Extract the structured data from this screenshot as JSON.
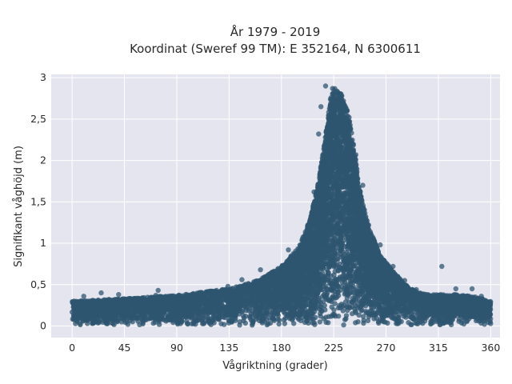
{
  "chart_data": {
    "type": "scatter",
    "title": "År 1979 - 2019",
    "subtitle": "Koordinat (Sweref 99 TM): E 352164, N 6300611",
    "xlabel": "Vågriktning (grader)",
    "ylabel": "Signifikant våghöjd (m)",
    "xlim": [
      -18,
      368
    ],
    "ylim": [
      -0.14,
      3.04
    ],
    "x_ticks": [
      0,
      45,
      90,
      135,
      180,
      225,
      270,
      315,
      360
    ],
    "x_tick_labels": [
      "0",
      "45",
      "90",
      "135",
      "180",
      "225",
      "270",
      "315",
      "360"
    ],
    "y_ticks": [
      0,
      0.5,
      1,
      1.5,
      2,
      2.5,
      3
    ],
    "y_tick_labels": [
      "0",
      "0,5",
      "1",
      "1,5",
      "2",
      "2,5",
      "3"
    ],
    "grid": true,
    "point_color": "#2f5670",
    "background_color": "#e5e5ef",
    "envelope_upper": {
      "x": [
        0,
        45,
        90,
        135,
        160,
        180,
        195,
        205,
        212,
        218,
        222,
        226,
        232,
        238,
        243,
        248,
        255,
        265,
        275,
        285,
        295,
        305,
        315,
        330,
        345,
        360
      ],
      "y": [
        0.3,
        0.33,
        0.37,
        0.45,
        0.55,
        0.72,
        0.95,
        1.3,
        1.75,
        2.3,
        2.75,
        2.88,
        2.8,
        2.55,
        2.1,
        1.6,
        1.2,
        0.85,
        0.68,
        0.52,
        0.42,
        0.38,
        0.38,
        0.38,
        0.36,
        0.3
      ]
    },
    "outliers": [
      {
        "x": 10,
        "y": 0.36
      },
      {
        "x": 25,
        "y": 0.4
      },
      {
        "x": 40,
        "y": 0.38
      },
      {
        "x": 72,
        "y": 0.37
      },
      {
        "x": 74,
        "y": 0.43
      },
      {
        "x": 118,
        "y": 0.42
      },
      {
        "x": 134,
        "y": 0.48
      },
      {
        "x": 146,
        "y": 0.56
      },
      {
        "x": 162,
        "y": 0.68
      },
      {
        "x": 186,
        "y": 0.92
      },
      {
        "x": 198,
        "y": 1.05
      },
      {
        "x": 208,
        "y": 1.62
      },
      {
        "x": 212,
        "y": 2.32
      },
      {
        "x": 214,
        "y": 2.65
      },
      {
        "x": 218,
        "y": 2.9
      },
      {
        "x": 224,
        "y": 2.87
      },
      {
        "x": 233,
        "y": 2.7
      },
      {
        "x": 244,
        "y": 2.07
      },
      {
        "x": 250,
        "y": 1.7
      },
      {
        "x": 255,
        "y": 1.22
      },
      {
        "x": 265,
        "y": 0.98
      },
      {
        "x": 276,
        "y": 0.72
      },
      {
        "x": 286,
        "y": 0.55
      },
      {
        "x": 296,
        "y": 0.44
      },
      {
        "x": 305,
        "y": 0.38
      },
      {
        "x": 318,
        "y": 0.72
      },
      {
        "x": 330,
        "y": 0.45
      },
      {
        "x": 344,
        "y": 0.45
      },
      {
        "x": 352,
        "y": 0.36
      }
    ]
  }
}
